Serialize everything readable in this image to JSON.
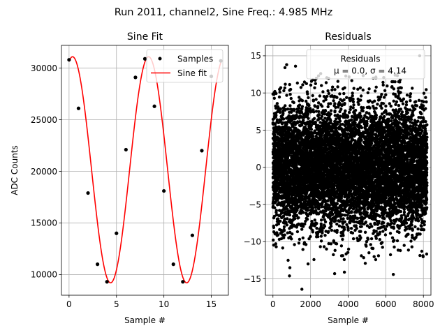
{
  "figure": {
    "suptitle": "Run 2011, channel2, Sine Freq.: 4.985 MHz"
  },
  "chart_data": [
    {
      "type": "line",
      "title": "Sine Fit",
      "xlabel": "Sample #",
      "ylabel": "ADC Counts",
      "xlim": [
        -0.8,
        16.8
      ],
      "ylim": [
        8000,
        32200
      ],
      "xticks": [
        0,
        5,
        10,
        15
      ],
      "yticks": [
        10000,
        15000,
        20000,
        25000,
        30000
      ],
      "grid": true,
      "legend": {
        "placement": "top-right",
        "entries": [
          "Samples",
          "Sine fit"
        ]
      },
      "colors": {
        "samples": "#000000",
        "fit": "#ff0000",
        "grid": "#b0b0b0"
      },
      "series": [
        {
          "name": "Samples",
          "kind": "scatter",
          "x": [
            0,
            1,
            2,
            3,
            4,
            5,
            6,
            7,
            8,
            9,
            10,
            11,
            12,
            13,
            14,
            15,
            16
          ],
          "y": [
            30800,
            26100,
            17900,
            11000,
            9300,
            14000,
            22100,
            29100,
            30900,
            26300,
            18100,
            11000,
            9300,
            13800,
            22000,
            29200,
            30700
          ]
        },
        {
          "name": "Sine fit",
          "kind": "line",
          "amplitude": 10950,
          "offset": 20150,
          "period": 8.02,
          "phase_x": 0.37,
          "x_range": [
            0,
            16
          ]
        }
      ]
    },
    {
      "type": "scatter",
      "title": "Residuals",
      "xlabel": "Sample #",
      "ylabel": "",
      "xlim": [
        -400,
        8400
      ],
      "ylim": [
        -17.2,
        16.4
      ],
      "xticks": [
        0,
        2000,
        4000,
        6000,
        8000
      ],
      "yticks": [
        -15,
        -10,
        -5,
        0,
        5,
        10,
        15
      ],
      "grid": true,
      "legend": {
        "placement": "top-right",
        "entries": [
          "Residuals",
          "μ = 0.0, σ = 4.14"
        ]
      },
      "colors": {
        "points": "#000000",
        "grid": "#b0b0b0"
      },
      "stats": {
        "n_points": 8192,
        "mean": 0.0,
        "sigma": 4.14
      },
      "outliers": {
        "x": [
          1540,
          900,
          640,
          730,
          6400,
          3280,
          3800,
          7800,
          880,
          1200,
          2540
        ],
        "y": [
          -16.4,
          -13.5,
          13.4,
          13.8,
          -14.4,
          -14.3,
          -14.1,
          15.0,
          -14.6,
          13.6,
          12.6
        ]
      }
    }
  ]
}
